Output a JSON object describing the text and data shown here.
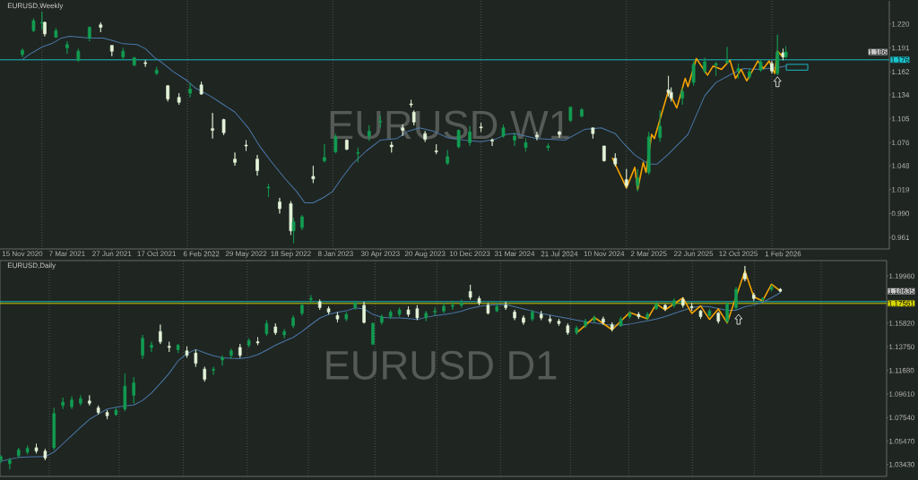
{
  "chart_data": [
    {
      "type": "candlestick",
      "title": "EURUSD,Weekly",
      "annotations": [
        "EURUSD W1",
        "1.186"
      ],
      "x": [
        "2020-11-15",
        "2020-12-13",
        "2021-01-03",
        "2021-01-10",
        "2021-02-07",
        "2021-03-07",
        "2021-04-04",
        "2021-05-02",
        "2021-05-30",
        "2021-06-27",
        "2021-07-25",
        "2021-08-22",
        "2021-09-19",
        "2021-10-17",
        "2021-11-14",
        "2021-12-12",
        "2022-01-09",
        "2022-02-06",
        "2022-03-06",
        "2022-04-03",
        "2022-05-01",
        "2022-05-29",
        "2022-06-26",
        "2022-07-24",
        "2022-08-21",
        "2022-09-18",
        "2022-09-25",
        "2022-10-16",
        "2022-11-13",
        "2022-12-11",
        "2023-01-08",
        "2023-02-05",
        "2023-03-05",
        "2023-04-02",
        "2023-04-30",
        "2023-05-28",
        "2023-06-25",
        "2023-07-16",
        "2023-07-23",
        "2023-08-20",
        "2023-09-17",
        "2023-10-15",
        "2023-11-12",
        "2023-12-10",
        "2024-01-07",
        "2024-02-04",
        "2024-03-03",
        "2024-03-31",
        "2024-04-28",
        "2024-05-26",
        "2024-06-23",
        "2024-07-21",
        "2024-08-18",
        "2024-09-15",
        "2024-10-13",
        "2024-11-10",
        "2024-12-08",
        "2025-01-05",
        "2025-02-02",
        "2025-03-02",
        "2025-03-30",
        "2025-04-20",
        "2025-04-27",
        "2025-05-25",
        "2025-06-22",
        "2025-07-20",
        "2025-08-17",
        "2025-09-14",
        "2025-10-12",
        "2025-11-09",
        "2025-12-07",
        "2026-01-04",
        "2026-01-18",
        "2026-02-01",
        "2026-02-08"
      ],
      "ohlc": [
        [
          1.183,
          1.19,
          1.18,
          1.188
        ],
        [
          1.212,
          1.227,
          1.21,
          1.224
        ],
        [
          1.221,
          1.235,
          1.213,
          1.222
        ],
        [
          1.222,
          1.223,
          1.205,
          1.208
        ],
        [
          1.204,
          1.215,
          1.203,
          1.212
        ],
        [
          1.191,
          1.199,
          1.184,
          1.195
        ],
        [
          1.176,
          1.19,
          1.174,
          1.187
        ],
        [
          1.203,
          1.217,
          1.199,
          1.216
        ],
        [
          1.219,
          1.222,
          1.21,
          1.216
        ],
        [
          1.194,
          1.194,
          1.181,
          1.187
        ],
        [
          1.18,
          1.191,
          1.176,
          1.187
        ],
        [
          1.17,
          1.18,
          1.169,
          1.179
        ],
        [
          1.173,
          1.176,
          1.168,
          1.172
        ],
        [
          1.16,
          1.168,
          1.158,
          1.164
        ],
        [
          1.145,
          1.146,
          1.126,
          1.129
        ],
        [
          1.131,
          1.136,
          1.122,
          1.125
        ],
        [
          1.136,
          1.148,
          1.131,
          1.141
        ],
        [
          1.146,
          1.15,
          1.134,
          1.135
        ],
        [
          1.093,
          1.112,
          1.081,
          1.091
        ],
        [
          1.104,
          1.105,
          1.085,
          1.088
        ],
        [
          1.056,
          1.064,
          1.048,
          1.052
        ],
        [
          1.073,
          1.079,
          1.066,
          1.072
        ],
        [
          1.056,
          1.061,
          1.036,
          1.042
        ],
        [
          1.021,
          1.026,
          1.01,
          1.022
        ],
        [
          1.004,
          1.009,
          0.99,
          0.996
        ],
        [
          1.002,
          1.005,
          0.964,
          0.969
        ],
        [
          0.969,
          0.985,
          0.954,
          0.98
        ],
        [
          0.973,
          0.988,
          0.97,
          0.986
        ],
        [
          1.035,
          1.048,
          1.027,
          1.032
        ],
        [
          1.054,
          1.074,
          1.052,
          1.058
        ],
        [
          1.065,
          1.087,
          1.063,
          1.083
        ],
        [
          1.079,
          1.08,
          1.067,
          1.068
        ],
        [
          1.063,
          1.07,
          1.052,
          1.064
        ],
        [
          1.084,
          1.097,
          1.078,
          1.09
        ],
        [
          1.101,
          1.109,
          1.094,
          1.102
        ],
        [
          1.073,
          1.077,
          1.064,
          1.071
        ],
        [
          1.094,
          1.098,
          1.084,
          1.091
        ],
        [
          1.123,
          1.128,
          1.119,
          1.122
        ],
        [
          1.113,
          1.115,
          1.097,
          1.101
        ],
        [
          1.087,
          1.09,
          1.077,
          1.08
        ],
        [
          1.066,
          1.074,
          1.062,
          1.065
        ],
        [
          1.051,
          1.067,
          1.049,
          1.059
        ],
        [
          1.071,
          1.092,
          1.069,
          1.091
        ],
        [
          1.076,
          1.096,
          1.072,
          1.089
        ],
        [
          1.095,
          1.1,
          1.089,
          1.094
        ],
        [
          1.079,
          1.081,
          1.072,
          1.078
        ],
        [
          1.084,
          1.098,
          1.082,
          1.094
        ],
        [
          1.079,
          1.088,
          1.072,
          1.084
        ],
        [
          1.07,
          1.081,
          1.065,
          1.076
        ],
        [
          1.085,
          1.089,
          1.079,
          1.083
        ],
        [
          1.07,
          1.075,
          1.066,
          1.072
        ],
        [
          1.089,
          1.09,
          1.082,
          1.086
        ],
        [
          1.103,
          1.12,
          1.101,
          1.119
        ],
        [
          1.108,
          1.118,
          1.107,
          1.116
        ],
        [
          1.094,
          1.094,
          1.081,
          1.087
        ],
        [
          1.072,
          1.072,
          1.053,
          1.054
        ],
        [
          1.057,
          1.063,
          1.047,
          1.05
        ],
        [
          1.031,
          1.044,
          1.021,
          1.024
        ],
        [
          1.024,
          1.044,
          1.017,
          1.033
        ],
        [
          1.04,
          1.089,
          1.037,
          1.083
        ],
        [
          1.082,
          1.115,
          1.077,
          1.096
        ],
        [
          1.14,
          1.157,
          1.132,
          1.137
        ],
        [
          1.137,
          1.143,
          1.126,
          1.13
        ],
        [
          1.13,
          1.142,
          1.122,
          1.138
        ],
        [
          1.149,
          1.175,
          1.145,
          1.171
        ],
        [
          1.163,
          1.179,
          1.16,
          1.174
        ],
        [
          1.17,
          1.174,
          1.157,
          1.172
        ],
        [
          1.173,
          1.192,
          1.172,
          1.175
        ],
        [
          1.163,
          1.172,
          1.154,
          1.166
        ],
        [
          1.156,
          1.166,
          1.153,
          1.162
        ],
        [
          1.164,
          1.177,
          1.162,
          1.174
        ],
        [
          1.172,
          1.175,
          1.16,
          1.163
        ],
        [
          1.16,
          1.207,
          1.158,
          1.186
        ],
        [
          1.185,
          1.19,
          1.176,
          1.18
        ],
        [
          1.18,
          1.193,
          1.178,
          1.186
        ]
      ],
      "colors": [
        "#129c52",
        "#129c52",
        "#129c52",
        "#e3f4d9",
        "#129c52",
        "#129c52",
        "#129c52",
        "#129c52",
        "#e3f4d9",
        "#e3f4d9",
        "#129c52",
        "#129c52",
        "#e3f4d9",
        "#129c52",
        "#e3f4d9",
        "#e3f4d9",
        "#129c52",
        "#e3f4d9",
        "#e3f4d9",
        "#e3f4d9",
        "#e3f4d9",
        "#e3f4d9",
        "#e3f4d9",
        "#129c52",
        "#e3f4d9",
        "#e3f4d9",
        "#129c52",
        "#129c52",
        "#e3f4d9",
        "#129c52",
        "#129c52",
        "#e3f4d9",
        "#129c52",
        "#129c52",
        "#129c52",
        "#e3f4d9",
        "#e3f4d9",
        "#e3f4d9",
        "#e3f4d9",
        "#e3f4d9",
        "#e3f4d9",
        "#129c52",
        "#129c52",
        "#129c52",
        "#e3f4d9",
        "#e3f4d9",
        "#129c52",
        "#129c52",
        "#129c52",
        "#e3f4d9",
        "#129c52",
        "#e3f4d9",
        "#129c52",
        "#129c52",
        "#e3f4d9",
        "#e3f4d9",
        "#e3f4d9",
        "#e3f4d9",
        "#129c52",
        "#129c52",
        "#129c52",
        "#e3f4d9",
        "#e3f4d9",
        "#129c52",
        "#129c52",
        "#129c52",
        "#129c52",
        "#129c52",
        "#129c52",
        "#129c52",
        "#129c52",
        "#e3f4d9",
        "#129c52",
        "#e3f4d9",
        "#129c52"
      ],
      "series": [
        {
          "type": "line",
          "color": "#4a78a8",
          "x": [
            "2020-11-15",
            "2020-12-06",
            "2021-01-03",
            "2021-01-31",
            "2021-02-21",
            "2021-03-14",
            "2021-05-02",
            "2021-06-06",
            "2021-07-04",
            "2021-07-25",
            "2021-08-29",
            "2021-09-19",
            "2021-10-10",
            "2021-10-31",
            "2021-11-28",
            "2022-01-02",
            "2022-01-23",
            "2022-02-27",
            "2022-04-03",
            "2022-05-01",
            "2022-06-05",
            "2022-07-03",
            "2022-07-31",
            "2022-09-04",
            "2022-10-02",
            "2022-10-23",
            "2022-11-13",
            "2022-12-11",
            "2023-01-01",
            "2023-01-22",
            "2023-02-19",
            "2023-03-26",
            "2023-04-30",
            "2023-06-11",
            "2023-07-09",
            "2023-08-06",
            "2023-09-10",
            "2023-10-15",
            "2023-11-26",
            "2024-01-07",
            "2024-02-11",
            "2024-03-10",
            "2024-03-31",
            "2024-05-26",
            "2024-08-04",
            "2024-09-22",
            "2024-11-03",
            "2024-12-08",
            "2024-12-29",
            "2025-01-26",
            "2025-03-02",
            "2025-03-23",
            "2025-04-20",
            "2025-06-08",
            "2025-07-20",
            "2025-08-17",
            "2025-09-28",
            "2025-10-26",
            "2025-11-30",
            "2026-01-18",
            "2026-02-08"
          ],
          "values": [
            1.177,
            1.184,
            1.192,
            1.197,
            1.203,
            1.205,
            1.203,
            1.203,
            1.199,
            1.196,
            1.195,
            1.19,
            1.18,
            1.173,
            1.162,
            1.151,
            1.142,
            1.133,
            1.122,
            1.113,
            1.093,
            1.071,
            1.053,
            1.032,
            1.017,
            1.003,
            1.003,
            1.01,
            1.017,
            1.032,
            1.05,
            1.066,
            1.079,
            1.081,
            1.09,
            1.094,
            1.09,
            1.082,
            1.079,
            1.077,
            1.08,
            1.086,
            1.087,
            1.081,
            1.079,
            1.092,
            1.094,
            1.087,
            1.075,
            1.061,
            1.05,
            1.05,
            1.062,
            1.086,
            1.133,
            1.149,
            1.16,
            1.166,
            1.165,
            1.167,
            1.169
          ]
        },
        {
          "type": "line",
          "color": "#f5a300",
          "x": [
            "2024-12-01",
            "2025-01-05",
            "2025-01-26",
            "2025-02-02",
            "2025-02-16",
            "2025-02-23",
            "2025-03-09",
            "2025-03-16",
            "2025-04-20",
            "2025-05-11",
            "2025-06-01",
            "2025-06-08",
            "2025-06-29",
            "2025-07-27",
            "2025-08-10",
            "2025-08-31",
            "2025-09-21",
            "2025-10-05",
            "2025-10-19",
            "2025-11-02",
            "2025-11-30",
            "2025-12-14",
            "2025-12-28",
            "2026-01-11",
            "2026-01-18",
            "2026-02-01"
          ],
          "values": [
            1.057,
            1.021,
            1.046,
            1.019,
            1.052,
            1.04,
            1.086,
            1.081,
            1.139,
            1.118,
            1.154,
            1.144,
            1.178,
            1.158,
            1.169,
            1.165,
            1.176,
            1.154,
            1.165,
            1.151,
            1.175,
            1.166,
            1.175,
            1.16,
            1.187,
            1.18
          ]
        },
        {
          "type": "bar",
          "color": "#19c6cf",
          "x": [
            "2026-03-08"
          ],
          "base": [
            1.164
          ],
          "values": [
            0.007
          ]
        }
      ],
      "xlim": [
        "2020-09-20",
        "2026-10-25"
      ],
      "xticks": [
        {
          "value": "2020-11-15",
          "label": "15 Nov 2020"
        },
        {
          "value": "2021-03-07",
          "label": "7 Mar 2021"
        },
        {
          "value": "2021-06-27",
          "label": "27 Jun 2021"
        },
        {
          "value": "2021-10-17",
          "label": "17 Oct 2021"
        },
        {
          "value": "2022-02-06",
          "label": "6 Feb 2022"
        },
        {
          "value": "2022-05-29",
          "label": "29 May 2022"
        },
        {
          "value": "2022-09-18",
          "label": "18 Sep 2022"
        },
        {
          "value": "2023-01-08",
          "label": "8 Jan 2023"
        },
        {
          "value": "2023-04-30",
          "label": "30 Apr 2023"
        },
        {
          "value": "2023-08-20",
          "label": "20 Aug 2023"
        },
        {
          "value": "2023-12-10",
          "label": "10 Dec 2023"
        },
        {
          "value": "2024-03-31",
          "label": "31 Mar 2024"
        },
        {
          "value": "2024-07-21",
          "label": "21 Jul 2024"
        },
        {
          "value": "2024-11-10",
          "label": "10 Nov 2024"
        },
        {
          "value": "2025-03-02",
          "label": "2 Mar 2025"
        },
        {
          "value": "2025-06-22",
          "label": "22 Jun 2025"
        },
        {
          "value": "2025-10-12",
          "label": "12 Oct 2025"
        },
        {
          "value": "2026-02-01",
          "label": "1 Feb 2026"
        }
      ],
      "ylim": [
        0.947,
        1.248
      ],
      "yticks": [
        {
          "value": 1.22,
          "label": "1.220"
        },
        1.191,
        1.162,
        1.134,
        1.105,
        1.076,
        1.048,
        1.019,
        {
          "value": 0.99,
          "label": "0.990"
        },
        0.961
      ],
      "ref_lines": [
        {
          "axis": "y",
          "value": 1.1765,
          "label": "1.176",
          "color": "#19c6cf"
        },
        {
          "axis": "x",
          "value": "2021-01-03",
          "color": "#6b6b6b",
          "line_style": "dotted"
        },
        {
          "axis": "x",
          "value": "2022-01-02",
          "color": "#6b6b6b",
          "line_style": "dotted"
        },
        {
          "axis": "x",
          "value": "2023-01-01",
          "color": "#6b6b6b",
          "line_style": "dotted"
        },
        {
          "axis": "x",
          "value": "2024-01-07",
          "color": "#6b6b6b",
          "line_style": "dotted"
        },
        {
          "axis": "x",
          "value": "2025-01-05",
          "color": "#6b6b6b",
          "line_style": "dotted"
        },
        {
          "axis": "x",
          "value": "2026-01-04",
          "color": "#6b6b6b",
          "line_style": "dotted"
        }
      ]
    },
    {
      "type": "candlestick",
      "title": "EURUSD,Daily",
      "annotations": [
        "EURUSD D1",
        "1.18635"
      ],
      "categories": [
        null,
        null,
        null,
        null,
        null,
        null,
        null,
        null,
        null,
        null,
        null,
        null,
        null,
        null,
        null,
        null,
        null,
        null,
        null,
        null,
        null,
        null,
        null,
        null,
        null,
        null,
        null,
        null,
        null,
        null,
        null,
        null,
        null,
        null,
        null,
        null,
        null,
        null,
        null,
        null,
        null,
        null,
        null,
        null,
        null,
        null,
        null,
        null,
        null,
        null,
        null,
        null,
        null,
        null,
        null,
        null,
        null,
        null,
        null,
        null,
        null,
        null,
        null,
        null,
        null,
        null,
        null,
        null,
        null,
        null,
        null,
        null,
        null,
        null,
        null,
        null,
        null,
        null,
        null,
        null,
        null,
        null,
        null,
        null,
        null,
        null,
        null,
        null,
        null,
        null,
        null,
        null,
        null,
        null,
        null,
        null,
        null,
        null,
        null,
        null,
        null
      ],
      "ohlc": [
        [
          1.0385,
          1.0425,
          1.0355,
          1.041
        ],
        [
          1.035,
          1.04,
          1.03,
          1.038
        ],
        [
          1.042,
          1.049,
          1.04,
          1.047
        ],
        [
          1.045,
          1.051,
          1.043,
          1.0485
        ],
        [
          1.049,
          1.0525,
          1.044,
          1.046
        ],
        [
          1.046,
          1.048,
          1.038,
          1.04
        ],
        [
          1.049,
          1.084,
          1.047,
          1.079
        ],
        [
          1.086,
          1.093,
          1.083,
          1.089
        ],
        [
          1.085,
          1.094,
          1.083,
          1.091
        ],
        [
          1.088,
          1.095,
          1.086,
          1.092
        ],
        [
          1.09,
          1.095,
          1.086,
          1.088
        ],
        [
          1.084,
          1.086,
          1.078,
          1.08
        ],
        [
          1.08,
          1.082,
          1.074,
          1.077
        ],
        [
          1.078,
          1.084,
          1.077,
          1.082
        ],
        [
          1.083,
          1.114,
          1.081,
          1.103
        ],
        [
          1.095,
          1.111,
          1.088,
          1.106
        ],
        [
          1.13,
          1.148,
          1.127,
          1.145
        ],
        [
          1.137,
          1.142,
          1.133,
          1.139
        ],
        [
          1.151,
          1.157,
          1.14,
          1.142
        ],
        [
          1.138,
          1.142,
          1.133,
          1.137
        ],
        [
          1.135,
          1.14,
          1.132,
          1.139
        ],
        [
          1.134,
          1.138,
          1.128,
          1.13
        ],
        [
          1.132,
          1.135,
          1.12,
          1.123
        ],
        [
          1.118,
          1.12,
          1.107,
          1.109
        ],
        [
          1.117,
          1.12,
          1.113,
          1.118
        ],
        [
          1.126,
          1.13,
          1.121,
          1.128
        ],
        [
          1.13,
          1.136,
          1.127,
          1.134
        ],
        [
          1.137,
          1.14,
          1.128,
          1.13
        ],
        [
          1.139,
          1.145,
          1.137,
          1.143
        ],
        [
          1.142,
          1.146,
          1.139,
          1.141
        ],
        [
          1.149,
          1.161,
          1.147,
          1.158
        ],
        [
          1.155,
          1.158,
          1.148,
          1.15
        ],
        [
          1.148,
          1.153,
          1.145,
          1.151
        ],
        [
          1.156,
          1.165,
          1.154,
          1.163
        ],
        [
          1.167,
          1.176,
          1.165,
          1.174
        ],
        [
          1.179,
          1.183,
          1.176,
          1.18
        ],
        [
          1.177,
          1.179,
          1.17,
          1.172
        ],
        [
          1.171,
          1.173,
          1.166,
          1.168
        ],
        [
          1.165,
          1.168,
          1.159,
          1.162
        ],
        [
          1.162,
          1.168,
          1.16,
          1.166
        ],
        [
          1.172,
          1.178,
          1.17,
          1.176
        ],
        [
          1.174,
          1.177,
          1.158,
          1.159
        ],
        [
          1.14,
          1.159,
          1.139,
          1.158
        ],
        [
          1.159,
          1.166,
          1.157,
          1.164
        ],
        [
          1.164,
          1.17,
          1.162,
          1.168
        ],
        [
          1.166,
          1.172,
          1.164,
          1.17
        ],
        [
          1.17,
          1.173,
          1.164,
          1.166
        ],
        [
          1.171,
          1.174,
          1.161,
          1.163
        ],
        [
          1.163,
          1.169,
          1.16,
          1.167
        ],
        [
          1.168,
          1.172,
          1.165,
          1.169
        ],
        [
          1.169,
          1.176,
          1.167,
          1.173
        ],
        [
          1.173,
          1.178,
          1.17,
          1.174
        ],
        [
          1.174,
          1.179,
          1.172,
          1.176
        ],
        [
          1.186,
          1.192,
          1.179,
          1.181
        ],
        [
          1.18,
          1.182,
          1.174,
          1.176
        ],
        [
          1.174,
          1.176,
          1.166,
          1.167
        ],
        [
          1.169,
          1.176,
          1.168,
          1.173
        ],
        [
          1.174,
          1.177,
          1.17,
          1.172
        ],
        [
          1.168,
          1.17,
          1.161,
          1.163
        ],
        [
          1.163,
          1.165,
          1.157,
          1.159
        ],
        [
          1.162,
          1.17,
          1.16,
          1.168
        ],
        [
          1.166,
          1.169,
          1.161,
          1.163
        ],
        [
          1.162,
          1.165,
          1.158,
          1.16
        ],
        [
          1.16,
          1.162,
          1.156,
          1.158
        ],
        [
          1.156,
          1.158,
          1.148,
          1.15
        ],
        [
          1.15,
          1.156,
          1.148,
          1.154
        ],
        [
          1.156,
          1.162,
          1.154,
          1.16
        ],
        [
          1.161,
          1.165,
          1.159,
          1.163
        ],
        [
          1.162,
          1.164,
          1.157,
          1.159
        ],
        [
          1.157,
          1.159,
          1.151,
          1.153
        ],
        [
          1.156,
          1.164,
          1.155,
          1.162
        ],
        [
          1.164,
          1.169,
          1.162,
          1.167
        ],
        [
          1.166,
          1.168,
          1.162,
          1.164
        ],
        [
          1.163,
          1.168,
          1.161,
          1.166
        ],
        [
          1.171,
          1.177,
          1.17,
          1.175
        ],
        [
          1.174,
          1.175,
          1.169,
          1.171
        ],
        [
          1.174,
          1.18,
          1.172,
          1.178
        ],
        [
          1.179,
          1.181,
          1.172,
          1.174
        ],
        [
          1.173,
          1.176,
          1.169,
          1.172
        ],
        [
          1.169,
          1.17,
          1.162,
          1.164
        ],
        [
          1.165,
          1.171,
          1.164,
          1.169
        ],
        [
          1.167,
          1.168,
          1.158,
          1.16
        ],
        [
          1.16,
          1.177,
          1.1585,
          1.175
        ],
        [
          1.172,
          1.19,
          1.17,
          1.188
        ],
        [
          1.202,
          1.2085,
          1.195,
          1.197
        ],
        [
          1.183,
          1.185,
          1.178,
          1.18
        ],
        [
          1.179,
          1.181,
          1.177,
          1.18
        ],
        [
          1.188,
          1.192,
          1.186,
          1.19
        ],
        [
          1.188,
          1.189,
          1.1855,
          1.18635
        ],
        null,
        null,
        null,
        null,
        null,
        null,
        null,
        null,
        null,
        null,
        null,
        null
      ],
      "colors": [
        "#129c52",
        "#129c52",
        "#129c52",
        "#129c52",
        "#e3f4d9",
        "#e3f4d9",
        "#129c52",
        "#129c52",
        "#129c52",
        "#129c52",
        "#e3f4d9",
        "#e3f4d9",
        "#e3f4d9",
        "#129c52",
        "#129c52",
        "#129c52",
        "#129c52",
        "#129c52",
        "#e3f4d9",
        "#e3f4d9",
        "#129c52",
        "#e3f4d9",
        "#e3f4d9",
        "#e3f4d9",
        "#129c52",
        "#129c52",
        "#129c52",
        "#e3f4d9",
        "#129c52",
        "#e3f4d9",
        "#129c52",
        "#e3f4d9",
        "#129c52",
        "#129c52",
        "#129c52",
        "#129c52",
        "#e3f4d9",
        "#e3f4d9",
        "#e3f4d9",
        "#129c52",
        "#129c52",
        "#e3f4d9",
        "#129c52",
        "#129c52",
        "#129c52",
        "#129c52",
        "#e3f4d9",
        "#e3f4d9",
        "#129c52",
        "#129c52",
        "#129c52",
        "#129c52",
        "#129c52",
        "#e3f4d9",
        "#e3f4d9",
        "#e3f4d9",
        "#129c52",
        "#e3f4d9",
        "#e3f4d9",
        "#e3f4d9",
        "#129c52",
        "#e3f4d9",
        "#e3f4d9",
        "#e3f4d9",
        "#e3f4d9",
        "#129c52",
        "#129c52",
        "#129c52",
        "#e3f4d9",
        "#e3f4d9",
        "#129c52",
        "#129c52",
        "#e3f4d9",
        "#129c52",
        "#129c52",
        "#e3f4d9",
        "#129c52",
        "#e3f4d9",
        "#e3f4d9",
        "#e3f4d9",
        "#129c52",
        "#e3f4d9",
        "#129c52",
        "#129c52",
        "#e3f4d9",
        "#e3f4d9",
        "#129c52",
        "#129c52",
        "#e3f4d9",
        null,
        null,
        null,
        null,
        null,
        null,
        null,
        null,
        null,
        null,
        null,
        null
      ],
      "series": [
        {
          "type": "line",
          "color": "#4a78a8",
          "values": [
            1.0372,
            1.0389,
            1.0406,
            1.0408,
            1.041,
            1.0412,
            1.0452,
            1.0525,
            1.0597,
            1.0669,
            1.0739,
            1.0785,
            1.0829,
            1.0845,
            1.0857,
            1.0865,
            1.0905,
            1.097,
            1.1054,
            1.1143,
            1.1252,
            1.1314,
            1.1353,
            1.1322,
            1.1297,
            1.128,
            1.1275,
            1.1272,
            1.1283,
            1.1307,
            1.1346,
            1.1389,
            1.1425,
            1.1458,
            1.151,
            1.157,
            1.1627,
            1.166,
            1.1679,
            1.1691,
            1.1717,
            1.1708,
            1.166,
            1.1635,
            1.1629,
            1.1629,
            1.1624,
            1.1616,
            1.1634,
            1.1648,
            1.1658,
            1.1671,
            1.1688,
            1.1713,
            1.1729,
            1.1742,
            1.1745,
            1.1747,
            1.1728,
            1.1708,
            1.1689,
            1.1669,
            1.1654,
            1.1639,
            1.1625,
            1.161,
            1.1596,
            1.1585,
            1.1575,
            1.1565,
            1.1567,
            1.1575,
            1.1589,
            1.1603,
            1.162,
            1.1641,
            1.1668,
            1.1694,
            1.172,
            1.1732,
            1.1727,
            1.1712,
            1.1695,
            1.1696,
            1.1727,
            1.1742,
            1.1767,
            1.1806,
            1.1851,
            null,
            null,
            null,
            null,
            null,
            null,
            null,
            null,
            null,
            null,
            null,
            null
          ]
        },
        {
          "type": "line",
          "color": "#f5a300",
          "values": [
            null,
            null,
            null,
            null,
            null,
            null,
            null,
            null,
            null,
            null,
            null,
            null,
            null,
            null,
            null,
            null,
            null,
            null,
            null,
            null,
            null,
            null,
            null,
            null,
            null,
            null,
            null,
            null,
            null,
            null,
            null,
            null,
            null,
            null,
            null,
            null,
            null,
            null,
            null,
            null,
            null,
            null,
            null,
            null,
            null,
            null,
            null,
            null,
            null,
            null,
            null,
            null,
            null,
            null,
            null,
            null,
            null,
            null,
            null,
            null,
            null,
            null,
            null,
            null,
            null,
            1.1498,
            1.1566,
            1.1634,
            1.158,
            1.1525,
            1.1601,
            1.1677,
            1.1649,
            1.1621,
            1.1752,
            1.17,
            1.1753,
            1.1805,
            1.1669,
            1.1734,
            1.1616,
            1.1708,
            1.1585,
            1.1813,
            1.2041,
            1.1813,
            1.1779,
            1.1925,
            1.1865,
            null,
            null,
            null,
            null,
            null,
            null,
            null,
            null,
            null,
            null,
            null,
            null
          ]
        }
      ],
      "ylim": [
        1.0238,
        1.2132
      ],
      "yticks": [
        {
          "value": 1.1996,
          "label": "1.19960"
        },
        {
          "value": 1.1582,
          "label": "1.15820"
        },
        {
          "value": 1.1375,
          "label": "1.13750"
        },
        {
          "value": 1.1168,
          "label": "1.11680"
        },
        {
          "value": 1.0961,
          "label": "1.09610"
        },
        {
          "value": 1.0754,
          "label": "1.07540"
        },
        {
          "value": 1.0547,
          "label": "1.05470"
        },
        {
          "value": 1.0343,
          "label": "1.03430"
        }
      ],
      "grid": "x",
      "ref_lines": [
        {
          "axis": "y",
          "value": 1.1772,
          "color": "#19c6cf"
        },
        {
          "axis": "y",
          "value": 1.17561,
          "label": "1.17561",
          "color": "#d8d800"
        }
      ]
    }
  ]
}
